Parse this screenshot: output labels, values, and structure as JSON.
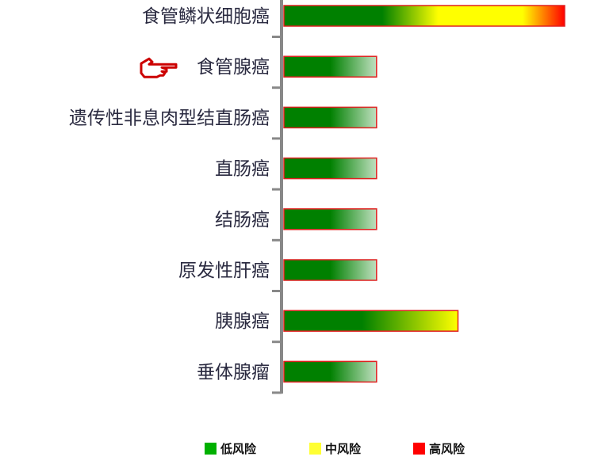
{
  "chart_data": {
    "type": "bar",
    "orientation": "horizontal",
    "categories": [
      "食管鳞状细胞癌",
      "食管腺癌",
      "遗传性非息肉型结直肠癌",
      "直肠癌",
      "结肠癌",
      "原发性肝癌",
      "胰腺癌",
      "垂体腺瘤"
    ],
    "values": [
      1.0,
      0.33,
      0.33,
      0.33,
      0.33,
      0.33,
      0.62,
      0.33
    ],
    "value_unit": "relative risk (no axis printed)",
    "highlighted_category": "食管腺癌",
    "highlight_icon": "pointing-hand-icon",
    "xlabel": "",
    "ylabel": "",
    "grid": false,
    "legend": {
      "placement": "bottom",
      "items": [
        {
          "label": "低风险",
          "color": "#00b000"
        },
        {
          "label": "中风险",
          "color": "#ffff33"
        },
        {
          "label": "高风险",
          "color": "#ff0000"
        }
      ]
    },
    "colors": {
      "low": "#008000",
      "medium": "#ffff00",
      "high": "#ff0000",
      "bar_border": "#e02020",
      "axis": "#888888"
    }
  }
}
